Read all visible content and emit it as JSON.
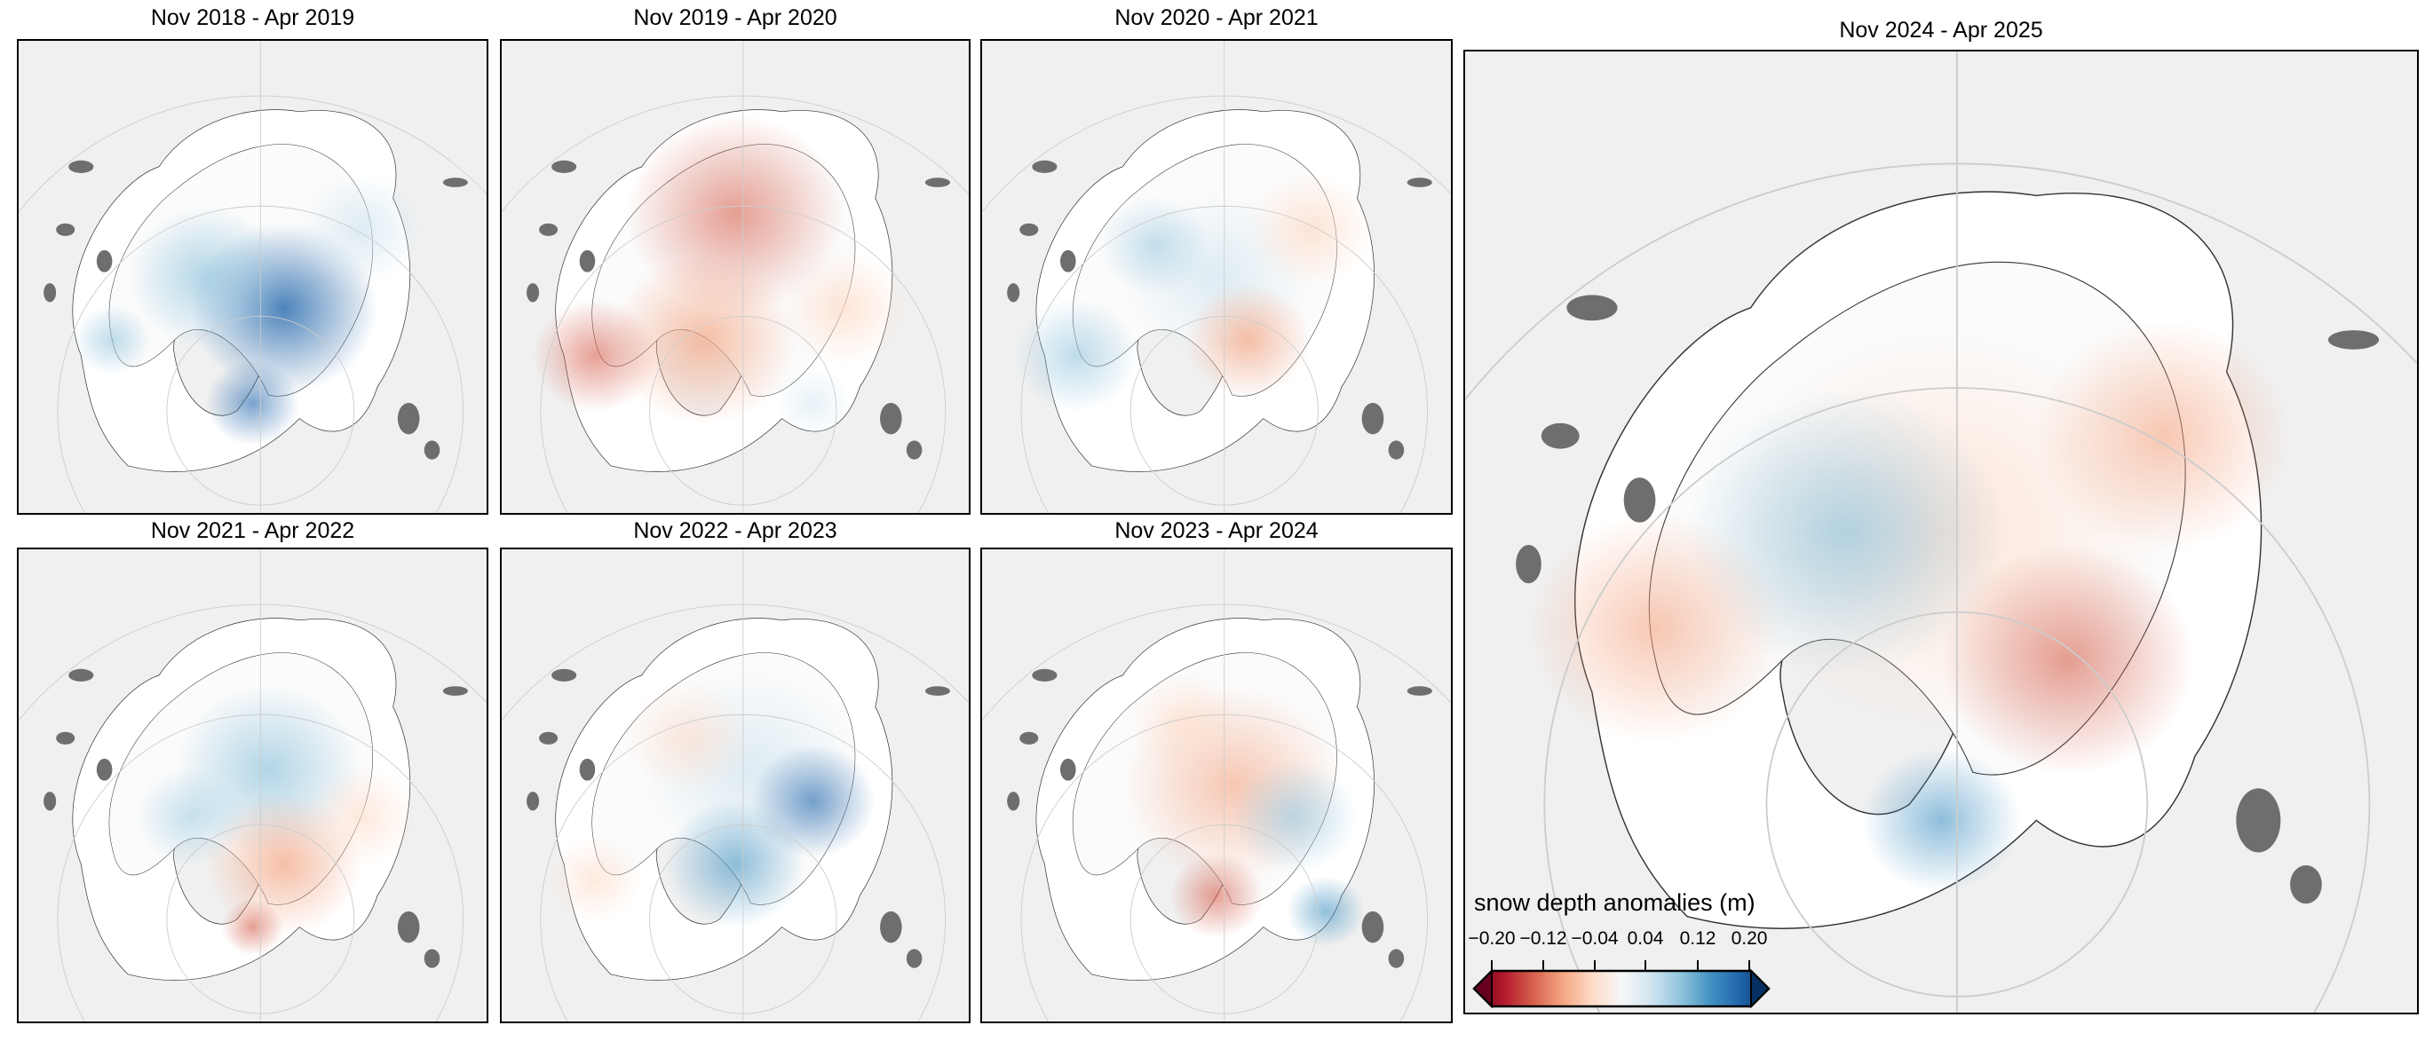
{
  "panels": [
    {
      "title": "Nov 2018 - Apr 2019"
    },
    {
      "title": "Nov 2019 - Apr 2020"
    },
    {
      "title": "Nov 2020 - Apr 2021"
    },
    {
      "title": "Nov 2021 - Apr 2022"
    },
    {
      "title": "Nov 2022 - Apr 2023"
    },
    {
      "title": "Nov 2023 - Apr 2024"
    },
    {
      "title": "Nov 2024 - Apr 2025"
    }
  ],
  "colorbar": {
    "label": "snow depth anomalies (m)",
    "ticks": [
      "−0.20",
      "−0.12",
      "−0.04",
      "0.04",
      "0.12",
      "0.20"
    ],
    "range": [
      -0.2,
      0.2
    ],
    "colors": [
      "#67001f",
      "#b2182b",
      "#d6604d",
      "#f4a582",
      "#fddbc7",
      "#f7f7f7",
      "#d1e5f0",
      "#92c5de",
      "#4393c3",
      "#2166ac",
      "#053061"
    ]
  }
}
